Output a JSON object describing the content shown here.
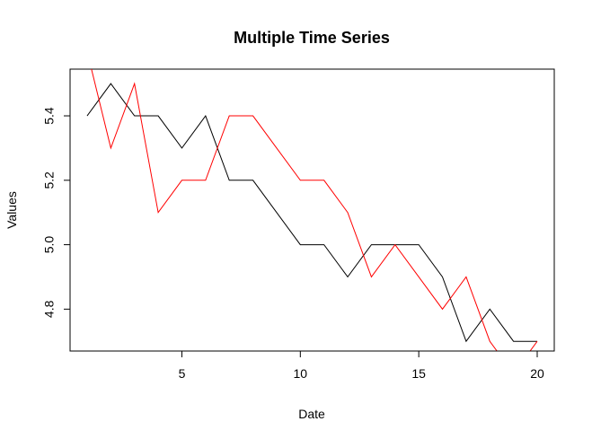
{
  "chart_data": {
    "type": "line",
    "title": "Multiple Time Series",
    "xlabel": "Date",
    "ylabel": "Values",
    "xlim": [
      0.28,
      20.72
    ],
    "ylim": [
      4.67,
      5.545
    ],
    "x_ticks": [
      5,
      10,
      15,
      20
    ],
    "y_ticks": [
      4.8,
      5.0,
      5.2,
      5.4
    ],
    "x_tick_labels": [
      "5",
      "10",
      "15",
      "20"
    ],
    "y_tick_labels": [
      "4.8",
      "5.0",
      "5.2",
      "5.4"
    ],
    "grid": false,
    "legend": "none",
    "x": [
      1,
      2,
      3,
      4,
      5,
      6,
      7,
      8,
      9,
      10,
      11,
      12,
      13,
      14,
      15,
      16,
      17,
      18,
      19,
      20
    ],
    "series": [
      {
        "color": "#000000",
        "values": [
          5.4,
          5.5,
          5.4,
          5.4,
          5.3,
          5.4,
          5.2,
          5.2,
          5.1,
          5.0,
          5.0,
          4.9,
          5.0,
          5.0,
          5.0,
          4.9,
          4.7,
          4.8,
          4.7,
          4.7
        ]
      },
      {
        "color": "#ff0000",
        "values": [
          5.6,
          5.3,
          5.5,
          5.1,
          5.2,
          5.2,
          5.4,
          5.4,
          5.3,
          5.2,
          5.2,
          5.1,
          4.9,
          5.0,
          4.9,
          4.8,
          4.9,
          4.7,
          4.6,
          4.7
        ]
      }
    ]
  }
}
